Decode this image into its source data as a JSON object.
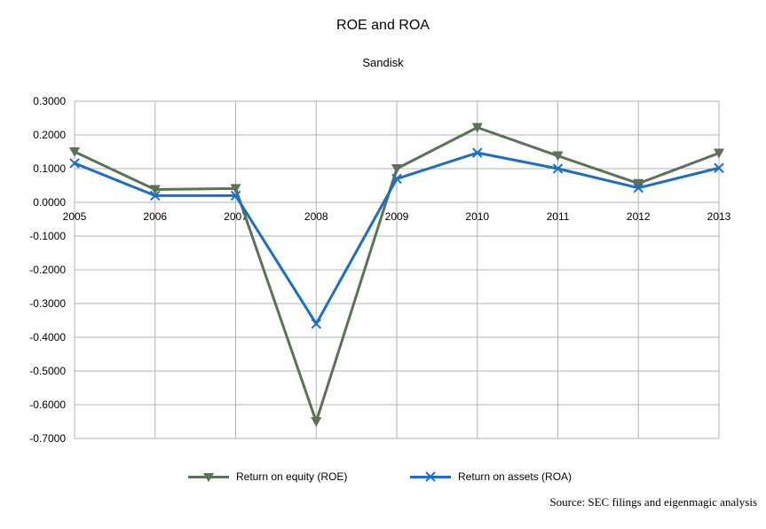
{
  "chart_data": {
    "type": "line",
    "title": "ROE and ROA",
    "subtitle": "Sandisk",
    "categories": [
      "2005",
      "2006",
      "2007",
      "2008",
      "2009",
      "2010",
      "2011",
      "2012",
      "2013"
    ],
    "y_ticks": [
      "0.3000",
      "0.2000",
      "0.1000",
      "0.0000",
      "-0.1000",
      "-0.2000",
      "-0.3000",
      "-0.4000",
      "-0.5000",
      "-0.6000",
      "-0.7000"
    ],
    "ylim": [
      -0.7,
      0.3
    ],
    "grid": true,
    "legend_position": "bottom",
    "series": [
      {
        "name": "Return on equity (ROE)",
        "color": "#5a7356",
        "marker": "triangle-down",
        "values": [
          0.15,
          0.038,
          0.041,
          -0.65,
          0.1,
          0.222,
          0.138,
          0.056,
          0.146
        ]
      },
      {
        "name": "Return on assets (ROA)",
        "color": "#1a6fc4",
        "marker": "x",
        "values": [
          0.116,
          0.02,
          0.02,
          -0.36,
          0.07,
          0.147,
          0.1,
          0.043,
          0.102
        ]
      }
    ]
  },
  "source_note": "Source: SEC filings and eigenmagic analysis"
}
